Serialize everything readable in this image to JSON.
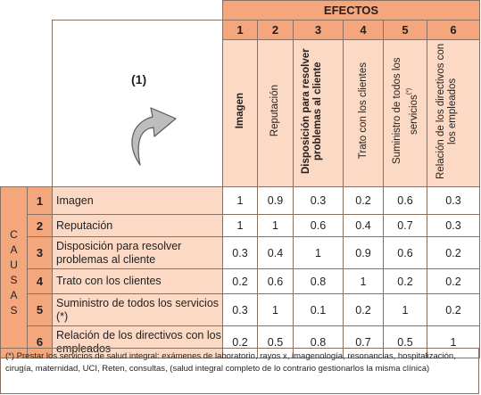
{
  "header": {
    "efectos": "EFECTOS",
    "causas_letters": [
      "C",
      "A",
      "U",
      "S",
      "A",
      "S"
    ],
    "arrow_label": "(1)"
  },
  "columns": [
    {
      "num": "1",
      "label": "Imagen"
    },
    {
      "num": "2",
      "label": "Reputación"
    },
    {
      "num": "3",
      "label": "Disposición para resolver problemas al cliente"
    },
    {
      "num": "4",
      "label": "Trato con los clientes"
    },
    {
      "num": "5",
      "label": "Suministro de todos los servicios",
      "sup": "(*)"
    },
    {
      "num": "6",
      "label": "Relación de los directivos con los empleados"
    }
  ],
  "rows": [
    {
      "num": "1",
      "label": "Imagen",
      "values": [
        "1",
        "0.9",
        "0.3",
        "0.2",
        "0.6",
        "0.3"
      ]
    },
    {
      "num": "2",
      "label": "Reputación",
      "values": [
        "1",
        "1",
        "0.6",
        "0.4",
        "0.7",
        "0.3"
      ]
    },
    {
      "num": "3",
      "label": "Disposición para resolver problemas al cliente",
      "values": [
        "0.3",
        "0.4",
        "1",
        "0.9",
        "0.6",
        "0.2"
      ]
    },
    {
      "num": "4",
      "label": "Trato con los clientes",
      "values": [
        "0.2",
        "0.6",
        "0.8",
        "1",
        "0.2",
        "0.2"
      ]
    },
    {
      "num": "5",
      "label": "Suministro de todos los servicios (*)",
      "values": [
        "0.3",
        "1",
        "0.1",
        "0.2",
        "1",
        "0.2"
      ]
    },
    {
      "num": "6",
      "label": "Relación de los directivos con los empleados",
      "values": [
        "0.2",
        "0.5",
        "0.8",
        "0.7",
        "0.5",
        "1"
      ]
    }
  ],
  "footnote": "(*) Prestar los servicios de salud integral: exámenes de laboratorio, rayos x, imagenología, resonancias, hospitalización, cirugía, maternidad, UCI, Reten, consultas, (salud integral completo de lo contrario gestionarlos la misma clínica)",
  "colors": {
    "header": "#f4a77d",
    "light": "#fbd9c4",
    "border": "#8a7060",
    "arrow": "#bdbdbd"
  }
}
